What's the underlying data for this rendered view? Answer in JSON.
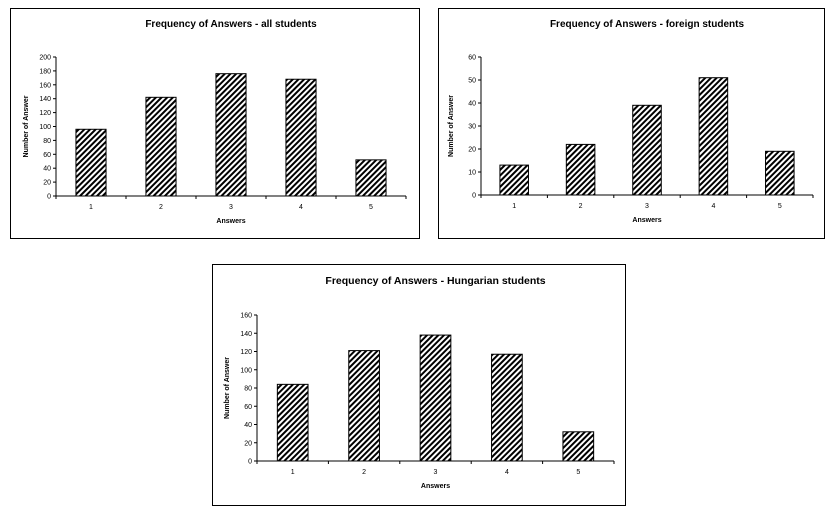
{
  "chart_data": [
    {
      "type": "bar",
      "title": "Frequency of Answers - all students",
      "xlabel": "Answers",
      "ylabel": "Number of Answer",
      "categories": [
        "1",
        "2",
        "3",
        "4",
        "5"
      ],
      "values": [
        96,
        142,
        176,
        168,
        52
      ],
      "ylim": [
        0,
        200
      ],
      "yticks": [
        0,
        20,
        40,
        60,
        80,
        100,
        120,
        140,
        160,
        180,
        200
      ],
      "grid": false,
      "legend": "none",
      "bar_pattern": "diagonal-hatch"
    },
    {
      "type": "bar",
      "title": "Frequency of Answers - foreign students",
      "xlabel": "Answers",
      "ylabel": "Number of Answer",
      "categories": [
        "1",
        "2",
        "3",
        "4",
        "5"
      ],
      "values": [
        13,
        22,
        39,
        51,
        19
      ],
      "ylim": [
        0,
        60
      ],
      "yticks": [
        0,
        10,
        20,
        30,
        40,
        50,
        60
      ],
      "grid": false,
      "legend": "none",
      "bar_pattern": "diagonal-hatch"
    },
    {
      "type": "bar",
      "title": "Frequency of Answers - Hungarian students",
      "xlabel": "Answers",
      "ylabel": "Number of Answer",
      "categories": [
        "1",
        "2",
        "3",
        "4",
        "5"
      ],
      "values": [
        84,
        121,
        138,
        117,
        32
      ],
      "ylim": [
        0,
        160
      ],
      "yticks": [
        0,
        20,
        40,
        60,
        80,
        100,
        120,
        140,
        160
      ],
      "grid": false,
      "legend": "none",
      "bar_pattern": "diagonal-hatch"
    }
  ]
}
